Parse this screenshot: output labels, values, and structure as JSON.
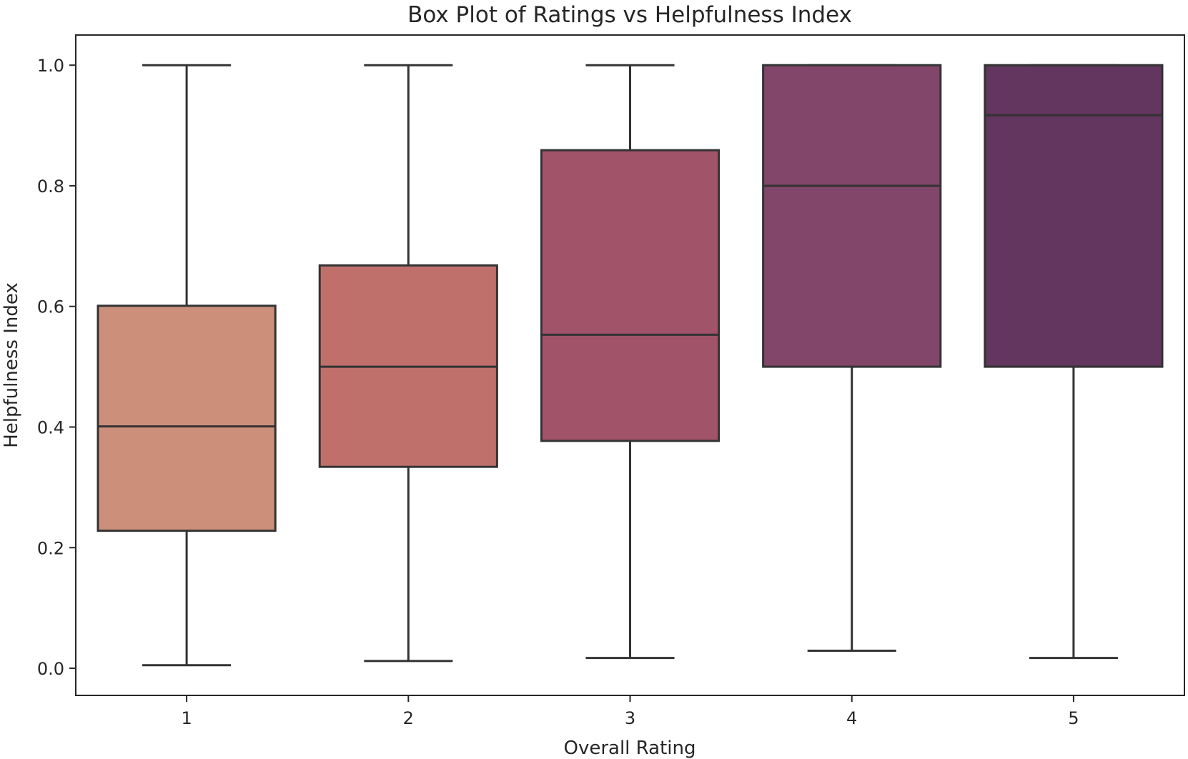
{
  "chart_data": {
    "type": "box",
    "title": "Box Plot of Ratings vs Helpfulness Index",
    "xlabel": "Overall Rating",
    "ylabel": "Helpfulness Index",
    "categories": [
      "1",
      "2",
      "3",
      "4",
      "5"
    ],
    "ylim": [
      -0.045,
      1.05
    ],
    "yticks": [
      0.0,
      0.2,
      0.4,
      0.6,
      0.8,
      1.0
    ],
    "ytick_labels": [
      "0.0",
      "0.2",
      "0.4",
      "0.6",
      "0.8",
      "1.0"
    ],
    "grid": false,
    "legend": "none",
    "boxes": [
      {
        "category": "1",
        "whisker_low": 0.005,
        "q1": 0.228,
        "median": 0.401,
        "q3": 0.601,
        "whisker_high": 1.0,
        "color": "#cc907a"
      },
      {
        "category": "2",
        "whisker_low": 0.012,
        "q1": 0.334,
        "median": 0.5,
        "q3": 0.668,
        "whisker_high": 1.0,
        "color": "#c0706b"
      },
      {
        "category": "3",
        "whisker_low": 0.017,
        "q1": 0.377,
        "median": 0.553,
        "q3": 0.859,
        "whisker_high": 1.0,
        "color": "#a1536a"
      },
      {
        "category": "4",
        "whisker_low": 0.029,
        "q1": 0.5,
        "median": 0.8,
        "q3": 1.0,
        "whisker_high": 1.0,
        "color": "#82466a"
      },
      {
        "category": "5",
        "whisker_low": 0.017,
        "q1": 0.5,
        "median": 0.917,
        "q3": 1.0,
        "whisker_high": 1.0,
        "color": "#62365e"
      }
    ],
    "colors": {
      "line": "#333333",
      "frame": "#262626"
    }
  }
}
